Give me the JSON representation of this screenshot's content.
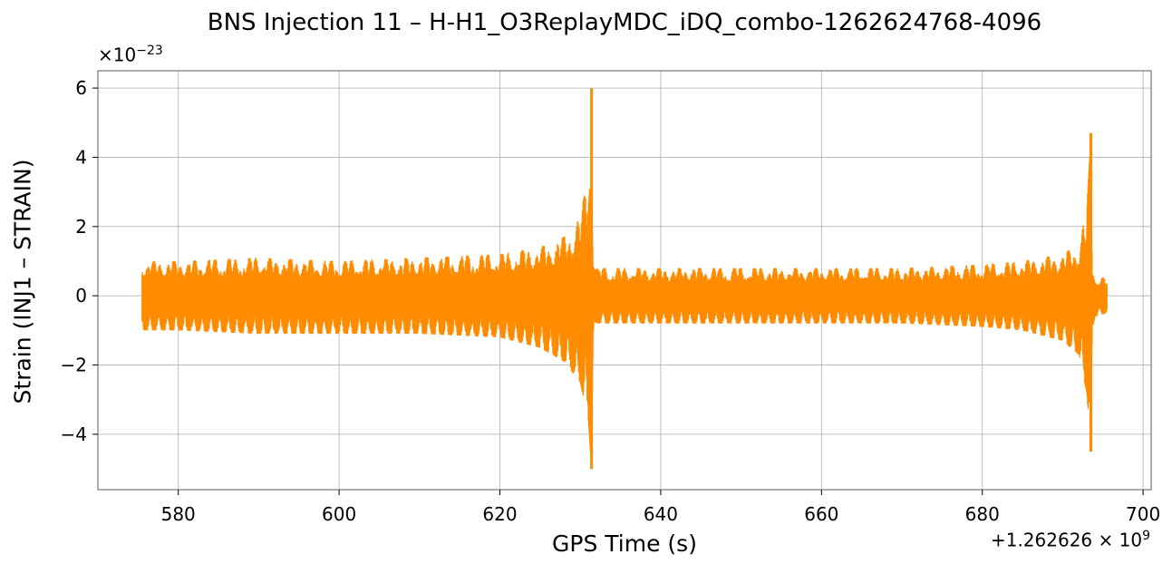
{
  "chart_data": {
    "type": "line",
    "title": "BNS Injection 11 – H-H1_O3ReplayMDC_iDQ_combo-1262624768-4096",
    "xlabel": "GPS Time (s)",
    "ylabel": "Strain (INJ1 – STRAIN)",
    "x_offset_text": "+1.262626 × 10",
    "x_offset_exponent": "9",
    "y_scale_text": "×10",
    "y_scale_exponent": "−23",
    "xlim": [
      570,
      701
    ],
    "ylim": [
      -5.6,
      6.5
    ],
    "x_ticks": [
      580,
      600,
      620,
      640,
      660,
      680,
      700
    ],
    "y_ticks": [
      -4,
      -2,
      0,
      2,
      4,
      6
    ],
    "y_tick_labels": [
      "−4",
      "−2",
      "0",
      "2",
      "4",
      "6"
    ],
    "x_range_data": [
      575.5,
      695.5
    ],
    "grid": true,
    "series": [
      {
        "color": "#ff8c00",
        "envelope": {
          "x": [
            575.5,
            580,
            590,
            600,
            610,
            620,
            625,
            628,
            630,
            631.0,
            631.4,
            631.6,
            632,
            635,
            640,
            650,
            660,
            670,
            680,
            685,
            690,
            692,
            693.0,
            693.5,
            693.7,
            694,
            695.5
          ],
          "upper": [
            1.0,
            1.0,
            1.1,
            1.0,
            1.1,
            1.2,
            1.4,
            1.7,
            2.3,
            3.5,
            6.0,
            1.5,
            0.8,
            0.8,
            0.8,
            0.8,
            0.8,
            0.8,
            0.9,
            1.0,
            1.2,
            1.5,
            2.5,
            4.7,
            1.0,
            0.6,
            0.5
          ],
          "lower": [
            -1.0,
            -1.0,
            -1.1,
            -1.1,
            -1.1,
            -1.2,
            -1.5,
            -1.9,
            -2.5,
            -3.6,
            -5.0,
            -1.5,
            -0.8,
            -0.8,
            -0.8,
            -0.8,
            -0.8,
            -0.8,
            -0.9,
            -1.0,
            -1.3,
            -1.7,
            -2.8,
            -4.5,
            -1.0,
            -0.6,
            -0.5
          ]
        }
      }
    ]
  }
}
